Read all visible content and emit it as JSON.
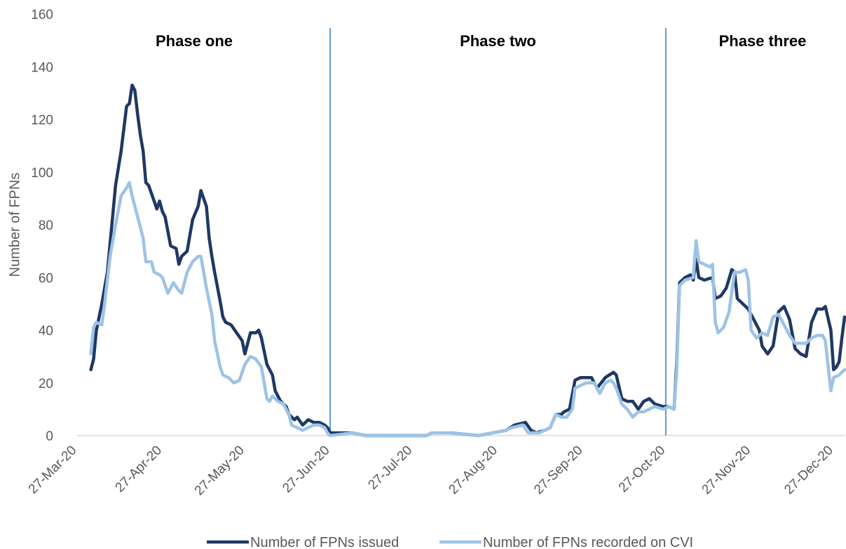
{
  "chart_data": {
    "type": "line",
    "title": "",
    "xlabel": "",
    "ylabel": "Number of FPNs",
    "ylim": [
      0,
      160
    ],
    "yticks": [
      0,
      20,
      40,
      60,
      80,
      100,
      120,
      140,
      160
    ],
    "xlim": [
      "2020-03-27",
      "2020-12-31"
    ],
    "xticks": [
      "2020-03-27",
      "2020-04-27",
      "2020-05-27",
      "2020-06-27",
      "2020-07-27",
      "2020-08-27",
      "2020-09-27",
      "2020-10-27",
      "2020-11-27",
      "2020-12-27"
    ],
    "xtick_labels": [
      "27-Mar-20",
      "27-Apr-20",
      "27-May-20",
      "27-Jun-20",
      "27-Jul-20",
      "27-Aug-20",
      "27-Sep-20",
      "27-Oct-20",
      "27-Nov-20",
      "27-Dec-20"
    ],
    "grid": false,
    "legend_position": "bottom",
    "phase_dividers": [
      "2020-06-27",
      "2020-10-27"
    ],
    "phases": [
      {
        "label": "Phase one",
        "at": "2020-05-06"
      },
      {
        "label": "Phase two",
        "at": "2020-08-15"
      },
      {
        "label": "Phase three",
        "at": "2020-12-12"
      }
    ],
    "series": [
      {
        "name": "Number of FPNs issued",
        "color": "#1f3864",
        "points": [
          [
            "2020-04-01",
            25
          ],
          [
            "2020-04-02",
            29
          ],
          [
            "2020-04-03",
            40
          ],
          [
            "2020-04-05",
            50
          ],
          [
            "2020-04-07",
            62
          ],
          [
            "2020-04-08",
            73
          ],
          [
            "2020-04-10",
            95
          ],
          [
            "2020-04-12",
            108
          ],
          [
            "2020-04-14",
            125
          ],
          [
            "2020-04-15",
            126
          ],
          [
            "2020-04-16",
            133
          ],
          [
            "2020-04-17",
            131
          ],
          [
            "2020-04-18",
            122
          ],
          [
            "2020-04-19",
            114
          ],
          [
            "2020-04-20",
            108
          ],
          [
            "2020-04-21",
            96
          ],
          [
            "2020-04-22",
            95
          ],
          [
            "2020-04-24",
            89
          ],
          [
            "2020-04-25",
            86
          ],
          [
            "2020-04-26",
            89
          ],
          [
            "2020-04-27",
            85
          ],
          [
            "2020-04-28",
            83
          ],
          [
            "2020-04-30",
            72
          ],
          [
            "2020-05-02",
            71
          ],
          [
            "2020-05-03",
            65
          ],
          [
            "2020-05-04",
            68
          ],
          [
            "2020-05-06",
            70
          ],
          [
            "2020-05-08",
            82
          ],
          [
            "2020-05-10",
            87
          ],
          [
            "2020-05-11",
            93
          ],
          [
            "2020-05-13",
            87
          ],
          [
            "2020-05-14",
            75
          ],
          [
            "2020-05-15",
            68
          ],
          [
            "2020-05-16",
            62
          ],
          [
            "2020-05-18",
            51
          ],
          [
            "2020-05-19",
            45
          ],
          [
            "2020-05-20",
            43
          ],
          [
            "2020-05-22",
            42
          ],
          [
            "2020-05-24",
            39
          ],
          [
            "2020-05-26",
            36
          ],
          [
            "2020-05-27",
            31
          ],
          [
            "2020-05-29",
            39
          ],
          [
            "2020-05-31",
            39
          ],
          [
            "2020-06-01",
            40
          ],
          [
            "2020-06-02",
            37
          ],
          [
            "2020-06-04",
            27
          ],
          [
            "2020-06-06",
            23
          ],
          [
            "2020-06-07",
            17
          ],
          [
            "2020-06-09",
            13
          ],
          [
            "2020-06-11",
            11
          ],
          [
            "2020-06-12",
            8
          ],
          [
            "2020-06-14",
            6
          ],
          [
            "2020-06-15",
            7
          ],
          [
            "2020-06-17",
            4
          ],
          [
            "2020-06-19",
            6
          ],
          [
            "2020-06-21",
            5
          ],
          [
            "2020-06-23",
            5
          ],
          [
            "2020-06-25",
            4
          ],
          [
            "2020-06-26",
            3
          ],
          [
            "2020-06-27",
            1
          ],
          [
            "2020-07-05",
            1
          ],
          [
            "2020-07-10",
            0
          ],
          [
            "2020-08-01",
            0
          ],
          [
            "2020-08-03",
            1
          ],
          [
            "2020-08-10",
            1
          ],
          [
            "2020-08-20",
            0
          ],
          [
            "2020-08-25",
            1
          ],
          [
            "2020-08-30",
            2
          ],
          [
            "2020-09-02",
            4
          ],
          [
            "2020-09-06",
            5
          ],
          [
            "2020-09-08",
            2
          ],
          [
            "2020-09-10",
            1
          ],
          [
            "2020-09-13",
            2
          ],
          [
            "2020-09-15",
            3
          ],
          [
            "2020-09-17",
            8
          ],
          [
            "2020-09-19",
            8
          ],
          [
            "2020-09-20",
            9
          ],
          [
            "2020-09-22",
            10
          ],
          [
            "2020-09-24",
            21
          ],
          [
            "2020-09-26",
            22
          ],
          [
            "2020-09-30",
            22
          ],
          [
            "2020-10-02",
            18
          ],
          [
            "2020-10-05",
            22
          ],
          [
            "2020-10-08",
            24
          ],
          [
            "2020-10-09",
            23
          ],
          [
            "2020-10-11",
            14
          ],
          [
            "2020-10-13",
            13
          ],
          [
            "2020-10-15",
            13
          ],
          [
            "2020-10-17",
            10
          ],
          [
            "2020-10-19",
            13
          ],
          [
            "2020-10-21",
            14
          ],
          [
            "2020-10-23",
            12
          ],
          [
            "2020-10-26",
            11
          ],
          [
            "2020-10-28",
            11
          ],
          [
            "2020-10-30",
            10
          ],
          [
            "2020-10-31",
            28
          ],
          [
            "2020-11-01",
            58
          ],
          [
            "2020-11-03",
            60
          ],
          [
            "2020-11-05",
            61
          ],
          [
            "2020-11-06",
            59
          ],
          [
            "2020-11-07",
            67
          ],
          [
            "2020-11-08",
            60
          ],
          [
            "2020-11-10",
            59
          ],
          [
            "2020-11-13",
            60
          ],
          [
            "2020-11-14",
            52
          ],
          [
            "2020-11-16",
            53
          ],
          [
            "2020-11-18",
            56
          ],
          [
            "2020-11-20",
            63
          ],
          [
            "2020-11-21",
            62
          ],
          [
            "2020-11-22",
            52
          ],
          [
            "2020-11-24",
            50
          ],
          [
            "2020-11-26",
            48
          ],
          [
            "2020-11-28",
            44
          ],
          [
            "2020-11-30",
            40
          ],
          [
            "2020-12-01",
            34
          ],
          [
            "2020-12-03",
            31
          ],
          [
            "2020-12-05",
            34
          ],
          [
            "2020-12-07",
            47
          ],
          [
            "2020-12-09",
            49
          ],
          [
            "2020-12-11",
            44
          ],
          [
            "2020-12-13",
            33
          ],
          [
            "2020-12-15",
            31
          ],
          [
            "2020-12-17",
            30
          ],
          [
            "2020-12-19",
            43
          ],
          [
            "2020-12-21",
            48
          ],
          [
            "2020-12-23",
            48
          ],
          [
            "2020-12-24",
            49
          ],
          [
            "2020-12-26",
            40
          ],
          [
            "2020-12-27",
            25
          ],
          [
            "2020-12-28",
            26
          ],
          [
            "2020-12-29",
            28
          ],
          [
            "2020-12-30",
            37
          ],
          [
            "2020-12-31",
            45
          ]
        ]
      },
      {
        "name": "Number of FPNs recorded on CVI",
        "color": "#9dc3e6",
        "points": [
          [
            "2020-04-01",
            31
          ],
          [
            "2020-04-02",
            41
          ],
          [
            "2020-04-03",
            43
          ],
          [
            "2020-04-05",
            42
          ],
          [
            "2020-04-06",
            50
          ],
          [
            "2020-04-08",
            68
          ],
          [
            "2020-04-10",
            80
          ],
          [
            "2020-04-12",
            91
          ],
          [
            "2020-04-14",
            94
          ],
          [
            "2020-04-15",
            96
          ],
          [
            "2020-04-16",
            91
          ],
          [
            "2020-04-18",
            83
          ],
          [
            "2020-04-20",
            75
          ],
          [
            "2020-04-21",
            66
          ],
          [
            "2020-04-23",
            66
          ],
          [
            "2020-04-24",
            62
          ],
          [
            "2020-04-26",
            61
          ],
          [
            "2020-04-27",
            60
          ],
          [
            "2020-04-29",
            54
          ],
          [
            "2020-05-01",
            58
          ],
          [
            "2020-05-03",
            55
          ],
          [
            "2020-05-04",
            54
          ],
          [
            "2020-05-06",
            62
          ],
          [
            "2020-05-08",
            66
          ],
          [
            "2020-05-10",
            68
          ],
          [
            "2020-05-11",
            68
          ],
          [
            "2020-05-13",
            56
          ],
          [
            "2020-05-15",
            46
          ],
          [
            "2020-05-16",
            36
          ],
          [
            "2020-05-18",
            26
          ],
          [
            "2020-05-19",
            23
          ],
          [
            "2020-05-21",
            22
          ],
          [
            "2020-05-23",
            20
          ],
          [
            "2020-05-25",
            21
          ],
          [
            "2020-05-27",
            27
          ],
          [
            "2020-05-29",
            30
          ],
          [
            "2020-05-31",
            29
          ],
          [
            "2020-06-02",
            26
          ],
          [
            "2020-06-03",
            20
          ],
          [
            "2020-06-04",
            14
          ],
          [
            "2020-06-05",
            13
          ],
          [
            "2020-06-06",
            15
          ],
          [
            "2020-06-08",
            13
          ],
          [
            "2020-06-10",
            12
          ],
          [
            "2020-06-12",
            8
          ],
          [
            "2020-06-13",
            4
          ],
          [
            "2020-06-15",
            3
          ],
          [
            "2020-06-17",
            2
          ],
          [
            "2020-06-19",
            3
          ],
          [
            "2020-06-21",
            4
          ],
          [
            "2020-06-23",
            4
          ],
          [
            "2020-06-25",
            3
          ],
          [
            "2020-06-26",
            1
          ],
          [
            "2020-06-27",
            0
          ],
          [
            "2020-07-05",
            1
          ],
          [
            "2020-07-10",
            0
          ],
          [
            "2020-08-01",
            0
          ],
          [
            "2020-08-03",
            1
          ],
          [
            "2020-08-10",
            1
          ],
          [
            "2020-08-20",
            0
          ],
          [
            "2020-08-25",
            1
          ],
          [
            "2020-08-30",
            2
          ],
          [
            "2020-09-01",
            3
          ],
          [
            "2020-09-05",
            4
          ],
          [
            "2020-09-07",
            1
          ],
          [
            "2020-09-11",
            1
          ],
          [
            "2020-09-15",
            3
          ],
          [
            "2020-09-17",
            8
          ],
          [
            "2020-09-19",
            7
          ],
          [
            "2020-09-21",
            7
          ],
          [
            "2020-09-23",
            10
          ],
          [
            "2020-09-24",
            18
          ],
          [
            "2020-09-26",
            19
          ],
          [
            "2020-09-28",
            20
          ],
          [
            "2020-10-01",
            20
          ],
          [
            "2020-10-03",
            16
          ],
          [
            "2020-10-05",
            20
          ],
          [
            "2020-10-07",
            21
          ],
          [
            "2020-10-08",
            20
          ],
          [
            "2020-10-09",
            18
          ],
          [
            "2020-10-11",
            12
          ],
          [
            "2020-10-13",
            10
          ],
          [
            "2020-10-15",
            7
          ],
          [
            "2020-10-17",
            9
          ],
          [
            "2020-10-19",
            9
          ],
          [
            "2020-10-21",
            10
          ],
          [
            "2020-10-23",
            11
          ],
          [
            "2020-10-26",
            10
          ],
          [
            "2020-10-28",
            11
          ],
          [
            "2020-10-30",
            10
          ],
          [
            "2020-10-31",
            25
          ],
          [
            "2020-11-01",
            57
          ],
          [
            "2020-11-03",
            59
          ],
          [
            "2020-11-06",
            60
          ],
          [
            "2020-11-07",
            74
          ],
          [
            "2020-11-08",
            66
          ],
          [
            "2020-11-10",
            65
          ],
          [
            "2020-11-12",
            64
          ],
          [
            "2020-11-13",
            65
          ],
          [
            "2020-11-14",
            43
          ],
          [
            "2020-11-15",
            39
          ],
          [
            "2020-11-17",
            41
          ],
          [
            "2020-11-19",
            47
          ],
          [
            "2020-11-21",
            62
          ],
          [
            "2020-11-23",
            62
          ],
          [
            "2020-11-25",
            63
          ],
          [
            "2020-11-26",
            59
          ],
          [
            "2020-11-27",
            40
          ],
          [
            "2020-11-29",
            37
          ],
          [
            "2020-12-01",
            39
          ],
          [
            "2020-12-03",
            38
          ],
          [
            "2020-12-05",
            45
          ],
          [
            "2020-12-07",
            46
          ],
          [
            "2020-12-09",
            42
          ],
          [
            "2020-12-11",
            38
          ],
          [
            "2020-12-13",
            35
          ],
          [
            "2020-12-15",
            35
          ],
          [
            "2020-12-17",
            35
          ],
          [
            "2020-12-19",
            37
          ],
          [
            "2020-12-21",
            38
          ],
          [
            "2020-12-23",
            38
          ],
          [
            "2020-12-24",
            36
          ],
          [
            "2020-12-26",
            17
          ],
          [
            "2020-12-27",
            22
          ],
          [
            "2020-12-29",
            23
          ],
          [
            "2020-12-31",
            25
          ]
        ]
      }
    ]
  }
}
